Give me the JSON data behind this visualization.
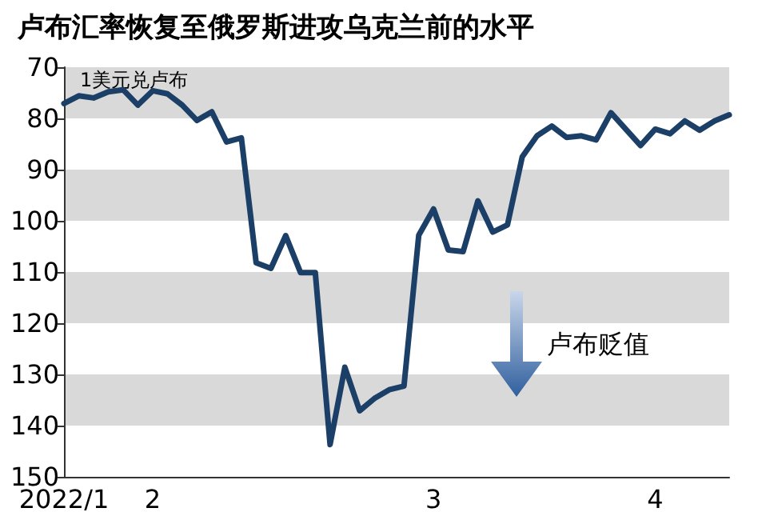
{
  "chart_data": {
    "type": "line",
    "title": "卢布汇率恢复至俄罗斯进攻乌克兰前的水平",
    "ylabel": "1美元兑卢布",
    "categories": [
      "2022/1",
      null,
      null,
      null,
      null,
      null,
      "2",
      null,
      null,
      null,
      null,
      null,
      null,
      null,
      null,
      null,
      null,
      null,
      null,
      null,
      null,
      null,
      null,
      null,
      null,
      "3",
      null,
      null,
      null,
      null,
      null,
      null,
      null,
      null,
      null,
      null,
      null,
      null,
      null,
      null,
      "4",
      null,
      null,
      null,
      null,
      null
    ],
    "series": [
      {
        "color": "#1b3f66",
        "values": [
          77.1,
          75.6,
          76,
          74.8,
          74.4,
          77.4,
          74.6,
          75.2,
          77.4,
          80.4,
          78.7,
          84.6,
          83.8,
          108.2,
          109.3,
          102.9,
          110.1,
          110.1,
          143.7,
          128.6,
          137.1,
          134.7,
          133,
          132.3,
          102.8,
          97.7,
          105.7,
          106,
          96.1,
          102.2,
          100.8,
          87.5,
          83.4,
          81.5,
          83.7,
          83.4,
          84.2,
          78.9,
          82.1,
          85.3,
          82.1,
          83,
          80.5,
          82.3,
          80.5,
          79.3
        ]
      }
    ],
    "ylim": [
      150,
      70
    ],
    "yticks": [
      70,
      80,
      90,
      100,
      110,
      120,
      130,
      140,
      150
    ],
    "bands": [
      {
        "axis": "y",
        "from": 70,
        "to": 80,
        "color": "#d9d9d9"
      },
      {
        "axis": "y",
        "from": 90,
        "to": 100,
        "color": "#d9d9d9"
      },
      {
        "axis": "y",
        "from": 110,
        "to": 120,
        "color": "#d9d9d9"
      },
      {
        "axis": "y",
        "from": 130,
        "to": 140,
        "color": "#d9d9d9"
      }
    ],
    "annotations": [
      "卢布贬值"
    ],
    "marker": "none",
    "line_style": "solid",
    "grid": false
  }
}
